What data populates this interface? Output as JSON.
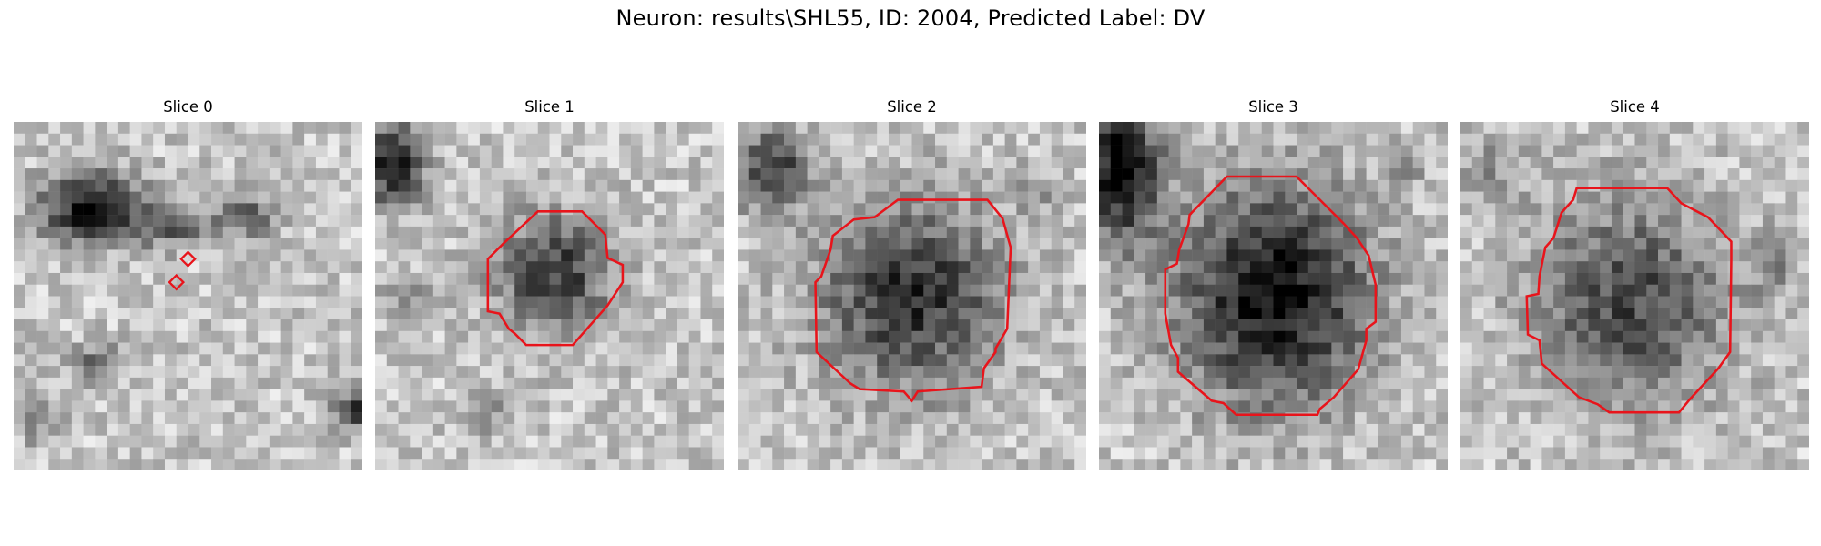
{
  "figure": {
    "title": "Neuron: results\\SHL55, ID: 2004, Predicted Label: DV"
  },
  "panels": [
    {
      "title": "Slice 0"
    },
    {
      "title": "Slice 1"
    },
    {
      "title": "Slice 2"
    },
    {
      "title": "Slice 3"
    },
    {
      "title": "Slice 4"
    }
  ],
  "colors": {
    "contour": "#e8141b",
    "background": "#ffffff"
  }
}
